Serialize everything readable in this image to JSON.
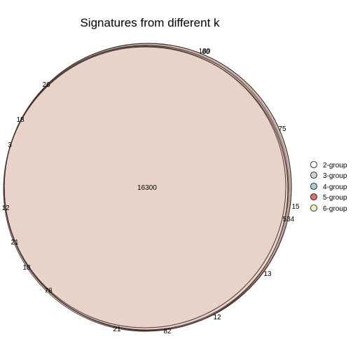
{
  "title": "Signatures from different k",
  "legend": [
    {
      "label": "2-group",
      "color": "#ffffff"
    },
    {
      "label": "3-group",
      "color": "#d0d0d0"
    },
    {
      "label": "4-group",
      "color": "#a9c8dc"
    },
    {
      "label": "5-group",
      "color": "#e07070"
    },
    {
      "label": "6-group",
      "color": "#f8f0c0"
    }
  ],
  "region_counts": [
    {
      "value": "16300"
    },
    {
      "value": "189"
    },
    {
      "value": "60"
    },
    {
      "value": "26"
    },
    {
      "value": "18"
    },
    {
      "value": "3"
    },
    {
      "value": "12"
    },
    {
      "value": "21"
    },
    {
      "value": "18"
    },
    {
      "value": "78"
    },
    {
      "value": "21"
    },
    {
      "value": "82"
    },
    {
      "value": "12"
    },
    {
      "value": "13"
    },
    {
      "value": "534"
    },
    {
      "value": "15"
    },
    {
      "value": "75"
    }
  ]
}
